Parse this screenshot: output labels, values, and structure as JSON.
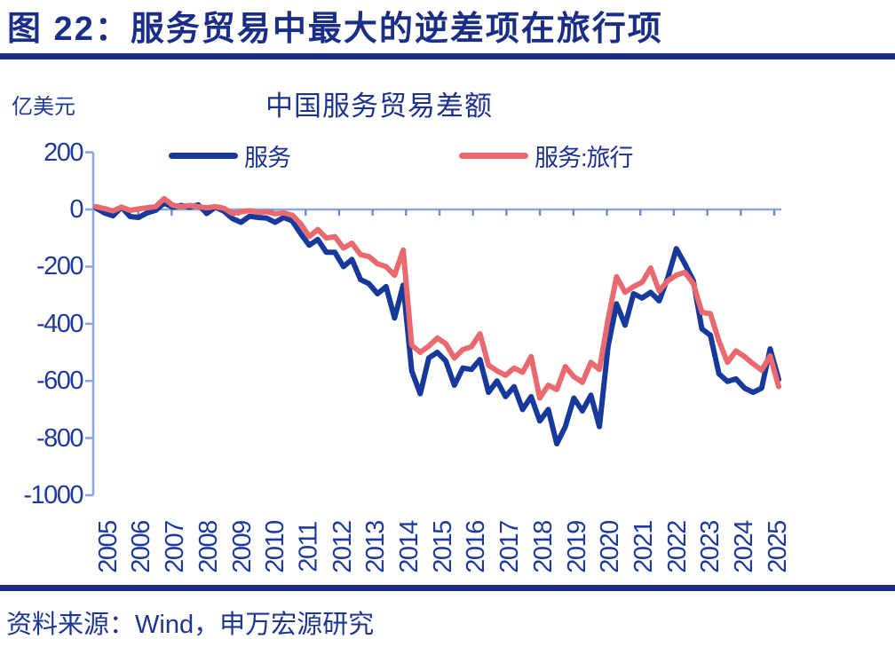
{
  "header": {
    "title": "图 22：服务贸易中最大的逆差项在旅行项"
  },
  "footer": {
    "source": "资料来源：Wind，申万宏源研究"
  },
  "colors": {
    "title_navy": "#1B2E87",
    "label_navy": "#1E3A9E",
    "axis_line": "#8EA6DE",
    "axis_tick": "#7089D0",
    "series_blue": "#17399B",
    "series_red": "#E9696F"
  },
  "chart_data": {
    "type": "line",
    "title": "中国服务贸易差额",
    "unit_label": "亿美元",
    "frequency": "quarterly",
    "x_start": "2005Q1",
    "x_end": "2025Q1",
    "ylim": [
      -1000,
      200
    ],
    "grid": "zero-line-only",
    "legend_position": "top",
    "y_ticks": [
      200,
      0,
      -200,
      -400,
      -600,
      -800,
      -1000
    ],
    "x_labels": [
      "2005",
      "2006",
      "2007",
      "2008",
      "2009",
      "2010",
      "2011",
      "2012",
      "2013",
      "2014",
      "2015",
      "2016",
      "2017",
      "2018",
      "2019",
      "2020",
      "2021",
      "2022",
      "2023",
      "2024",
      "2025"
    ],
    "series": [
      {
        "name": "服务",
        "color": "#17399B",
        "values": [
          5,
          -12,
          -22,
          8,
          -25,
          -28,
          -12,
          -3,
          22,
          8,
          14,
          8,
          16,
          -14,
          8,
          -6,
          -32,
          -45,
          -24,
          -28,
          -30,
          -45,
          -28,
          -40,
          -85,
          -125,
          -105,
          -150,
          -150,
          -200,
          -175,
          -245,
          -260,
          -295,
          -270,
          -380,
          -265,
          -565,
          -645,
          -520,
          -500,
          -530,
          -615,
          -555,
          -560,
          -525,
          -640,
          -600,
          -655,
          -620,
          -700,
          -655,
          -740,
          -700,
          -820,
          -760,
          -660,
          -705,
          -650,
          -760,
          -480,
          -330,
          -405,
          -295,
          -310,
          -290,
          -320,
          -240,
          -137,
          -190,
          -250,
          -418,
          -440,
          -575,
          -602,
          -593,
          -625,
          -640,
          -625,
          -488,
          -595
        ]
      },
      {
        "name": "服务:旅行",
        "color": "#E9696F",
        "values": [
          10,
          3,
          -5,
          8,
          -3,
          2,
          6,
          10,
          38,
          15,
          10,
          14,
          10,
          6,
          10,
          4,
          -14,
          -8,
          -4,
          -10,
          -8,
          -15,
          -12,
          -20,
          -50,
          -95,
          -70,
          -100,
          -95,
          -135,
          -118,
          -158,
          -165,
          -190,
          -200,
          -230,
          -142,
          -475,
          -500,
          -478,
          -450,
          -470,
          -520,
          -490,
          -480,
          -435,
          -545,
          -565,
          -580,
          -555,
          -570,
          -515,
          -660,
          -615,
          -630,
          -550,
          -585,
          -605,
          -535,
          -560,
          -385,
          -235,
          -290,
          -270,
          -255,
          -205,
          -285,
          -250,
          -230,
          -220,
          -260,
          -360,
          -365,
          -460,
          -535,
          -495,
          -515,
          -540,
          -562,
          -512,
          -620
        ]
      }
    ]
  }
}
